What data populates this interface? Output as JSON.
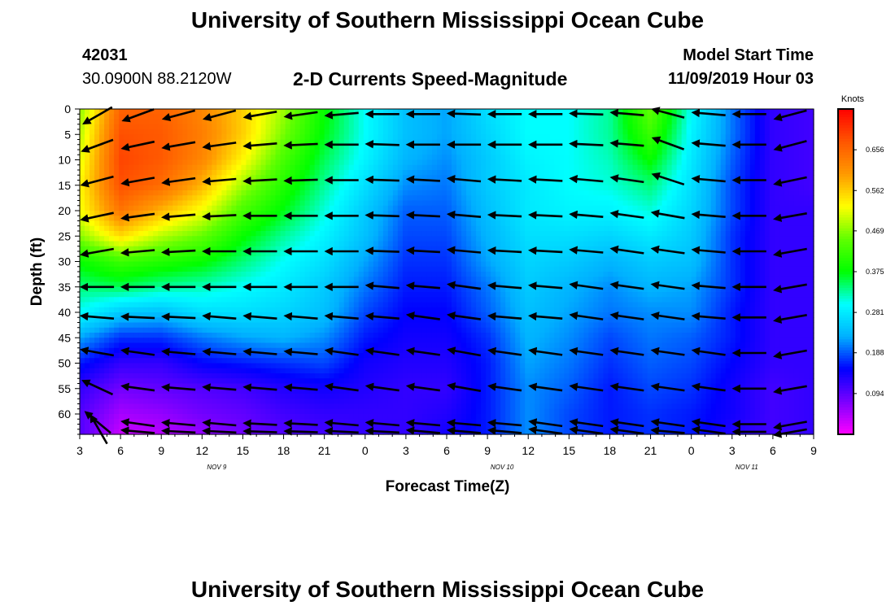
{
  "title_top": "University of Southern Mississippi Ocean Cube",
  "title_bottom": "University of Southern Mississippi Ocean Cube",
  "station": {
    "id": "42031",
    "coords": "30.0900N 88.2120W"
  },
  "subtitle": "2-D Currents Speed-Magnitude",
  "model_start": {
    "label": "Model Start Time",
    "value": "11/09/2019 Hour 03"
  },
  "chart_data": {
    "type": "heatmap",
    "title": "2-D Currents Speed-Magnitude",
    "xlabel": "Forecast Time(Z)",
    "ylabel": "Depth (ft)",
    "x_tick_labels": [
      "3",
      "6",
      "9",
      "12",
      "15",
      "18",
      "21",
      "0",
      "3",
      "6",
      "9",
      "12",
      "15",
      "18",
      "21",
      "0",
      "3",
      "6",
      "9"
    ],
    "date_labels": [
      {
        "text": "NOV  9",
        "at_tick": 3
      },
      {
        "text": "NOV  10",
        "at_tick": 10
      },
      {
        "text": "NOV  11",
        "at_tick": 16
      }
    ],
    "y_ticks": [
      0,
      5,
      10,
      15,
      20,
      25,
      30,
      35,
      40,
      45,
      50,
      55,
      60
    ],
    "ylim": [
      0,
      64
    ],
    "x_range_hours": [
      3,
      57
    ],
    "colorbar": {
      "unit": "Knots",
      "ticks": [
        0.094,
        0.188,
        0.281,
        0.375,
        0.469,
        0.562,
        0.656
      ],
      "range": [
        0.0,
        0.75
      ],
      "colors": [
        "#ff00ff",
        "#7a00ff",
        "#0000ff",
        "#00b0ff",
        "#00ffff",
        "#00ff00",
        "#60ff00",
        "#ffff00",
        "#ff9900",
        "#ff5500",
        "#ff0000"
      ]
    },
    "depths": [
      0,
      5,
      10,
      15,
      20,
      25,
      30,
      35,
      40,
      45,
      50,
      55,
      60,
      64
    ],
    "times": [
      3,
      6,
      9,
      12,
      15,
      18,
      21,
      24,
      27,
      30,
      33,
      36,
      39,
      42,
      45,
      48,
      51,
      54,
      57
    ],
    "speed_knots": [
      [
        0.47,
        0.66,
        0.66,
        0.62,
        0.56,
        0.48,
        0.38,
        0.3,
        0.24,
        0.22,
        0.27,
        0.3,
        0.3,
        0.33,
        0.45,
        0.3,
        0.2,
        0.12,
        0.11
      ],
      [
        0.49,
        0.68,
        0.67,
        0.63,
        0.56,
        0.46,
        0.37,
        0.3,
        0.24,
        0.22,
        0.26,
        0.3,
        0.3,
        0.33,
        0.42,
        0.29,
        0.2,
        0.12,
        0.11
      ],
      [
        0.51,
        0.69,
        0.67,
        0.62,
        0.53,
        0.43,
        0.35,
        0.29,
        0.23,
        0.21,
        0.25,
        0.29,
        0.3,
        0.32,
        0.38,
        0.28,
        0.19,
        0.12,
        0.11
      ],
      [
        0.53,
        0.68,
        0.65,
        0.58,
        0.48,
        0.4,
        0.33,
        0.27,
        0.21,
        0.2,
        0.25,
        0.28,
        0.3,
        0.31,
        0.34,
        0.27,
        0.18,
        0.12,
        0.11
      ],
      [
        0.52,
        0.64,
        0.58,
        0.52,
        0.43,
        0.37,
        0.31,
        0.25,
        0.19,
        0.19,
        0.24,
        0.28,
        0.29,
        0.29,
        0.31,
        0.26,
        0.18,
        0.12,
        0.12
      ],
      [
        0.47,
        0.55,
        0.49,
        0.45,
        0.38,
        0.33,
        0.29,
        0.24,
        0.18,
        0.18,
        0.23,
        0.27,
        0.27,
        0.26,
        0.28,
        0.25,
        0.17,
        0.12,
        0.12
      ],
      [
        0.38,
        0.42,
        0.4,
        0.38,
        0.34,
        0.3,
        0.27,
        0.22,
        0.17,
        0.17,
        0.22,
        0.26,
        0.25,
        0.23,
        0.25,
        0.24,
        0.17,
        0.12,
        0.12
      ],
      [
        0.34,
        0.35,
        0.33,
        0.32,
        0.3,
        0.28,
        0.25,
        0.2,
        0.16,
        0.16,
        0.2,
        0.25,
        0.23,
        0.21,
        0.23,
        0.22,
        0.17,
        0.12,
        0.12
      ],
      [
        0.3,
        0.25,
        0.24,
        0.27,
        0.27,
        0.26,
        0.24,
        0.18,
        0.15,
        0.15,
        0.19,
        0.24,
        0.22,
        0.2,
        0.21,
        0.21,
        0.16,
        0.12,
        0.12
      ],
      [
        0.22,
        0.17,
        0.17,
        0.2,
        0.22,
        0.23,
        0.21,
        0.16,
        0.14,
        0.14,
        0.17,
        0.23,
        0.21,
        0.18,
        0.2,
        0.19,
        0.16,
        0.12,
        0.12
      ],
      [
        0.16,
        0.12,
        0.12,
        0.15,
        0.16,
        0.17,
        0.18,
        0.14,
        0.13,
        0.13,
        0.16,
        0.22,
        0.2,
        0.17,
        0.19,
        0.18,
        0.15,
        0.12,
        0.12
      ],
      [
        0.12,
        0.08,
        0.09,
        0.1,
        0.11,
        0.13,
        0.14,
        0.13,
        0.12,
        0.12,
        0.16,
        0.21,
        0.19,
        0.16,
        0.18,
        0.17,
        0.14,
        0.11,
        0.12
      ],
      [
        0.1,
        0.05,
        0.06,
        0.08,
        0.09,
        0.11,
        0.12,
        0.12,
        0.12,
        0.13,
        0.16,
        0.21,
        0.18,
        0.16,
        0.17,
        0.16,
        0.14,
        0.11,
        0.12
      ],
      [
        0.1,
        0.03,
        0.04,
        0.06,
        0.08,
        0.1,
        0.11,
        0.12,
        0.12,
        0.14,
        0.16,
        0.21,
        0.18,
        0.16,
        0.17,
        0.16,
        0.13,
        0.11,
        0.12
      ]
    ],
    "vector_direction_deg": [
      [
        30,
        20,
        15,
        15,
        10,
        8,
        5,
        0,
        0,
        -2,
        0,
        0,
        -2,
        -5,
        -15,
        -5,
        0,
        15,
        20
      ],
      [
        20,
        12,
        10,
        8,
        5,
        3,
        0,
        -2,
        0,
        0,
        0,
        0,
        -3,
        -5,
        -20,
        -5,
        0,
        15,
        20
      ],
      [
        15,
        10,
        8,
        5,
        3,
        2,
        0,
        -2,
        -3,
        -5,
        -3,
        -3,
        -5,
        -8,
        -18,
        -5,
        0,
        12,
        15
      ],
      [
        12,
        8,
        5,
        3,
        0,
        0,
        0,
        -2,
        -3,
        -5,
        -3,
        -3,
        -5,
        -8,
        -10,
        -5,
        0,
        10,
        15
      ],
      [
        10,
        5,
        3,
        0,
        0,
        0,
        0,
        -2,
        -3,
        -5,
        -3,
        -3,
        -5,
        -8,
        -8,
        -5,
        0,
        10,
        15
      ],
      [
        0,
        0,
        0,
        0,
        0,
        0,
        0,
        -5,
        -5,
        -8,
        -5,
        -5,
        -8,
        -8,
        -8,
        -5,
        0,
        10,
        12
      ],
      [
        -5,
        -3,
        -3,
        -5,
        -5,
        -5,
        -5,
        -5,
        -8,
        -8,
        -5,
        -5,
        -8,
        -8,
        -8,
        -5,
        0,
        10,
        12
      ],
      [
        -10,
        -8,
        -5,
        -5,
        -5,
        -5,
        -8,
        -8,
        -8,
        -10,
        -8,
        -8,
        -8,
        -8,
        -8,
        -8,
        0,
        10,
        12
      ],
      [
        -25,
        -8,
        -5,
        -5,
        -5,
        -5,
        -8,
        -8,
        -8,
        -10,
        -8,
        -8,
        -8,
        -8,
        -8,
        -8,
        0,
        10,
        12
      ],
      [
        -40,
        -8,
        -5,
        -5,
        -3,
        -3,
        -5,
        -5,
        -5,
        -5,
        -5,
        -8,
        -8,
        -8,
        -8,
        -8,
        0,
        10,
        10
      ],
      [
        -60,
        -5,
        -3,
        -3,
        -2,
        -2,
        -3,
        -3,
        -5,
        -5,
        -5,
        -8,
        -8,
        -8,
        -5,
        -8,
        0,
        10,
        10
      ],
      [
        -65,
        -3,
        -2,
        -2,
        -2,
        -2,
        -2,
        -3,
        -3,
        -3,
        -3,
        -5,
        -5,
        -5,
        -5,
        -5,
        0,
        10,
        10
      ]
    ]
  }
}
